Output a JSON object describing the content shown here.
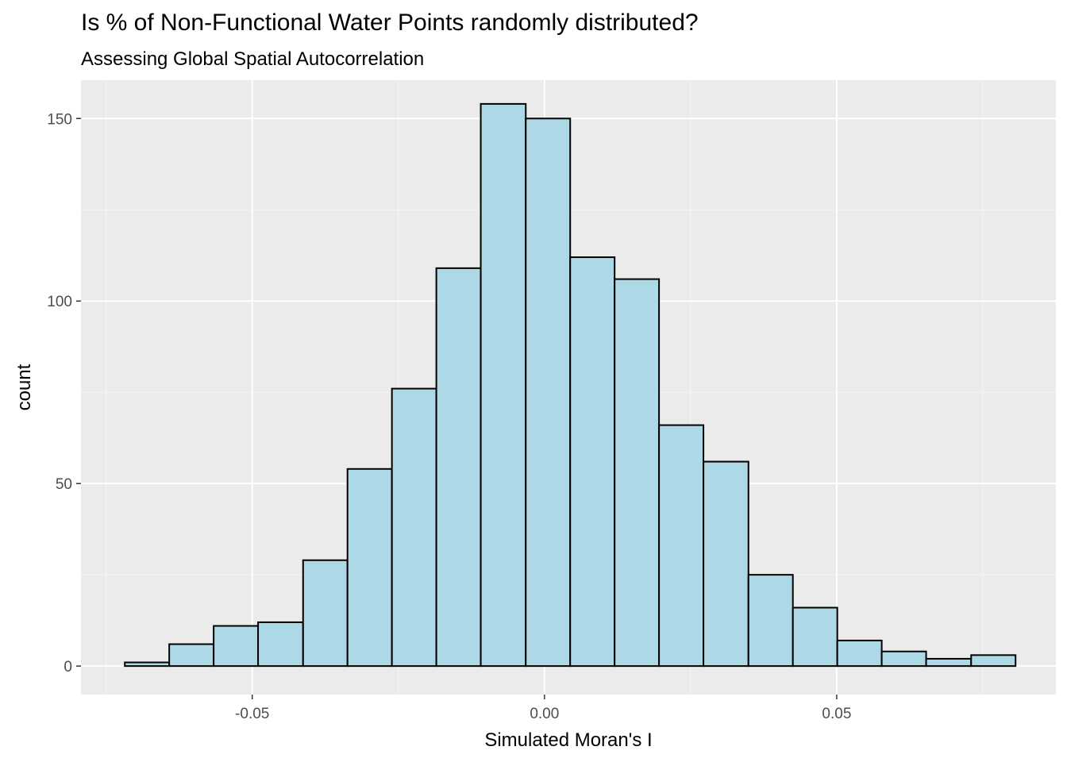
{
  "chart_data": {
    "type": "bar",
    "title": "Is % of Non-Functional Water Points randomly distributed?",
    "subtitle": "Assessing Global Spatial Autocorrelation",
    "xlabel": "Simulated Moran's I",
    "ylabel": "count",
    "xlim": [
      -0.0793,
      0.0875
    ],
    "ylim": [
      -7.8,
      160.5
    ],
    "x_ticks": [
      -0.05,
      0.0,
      0.05
    ],
    "x_tick_labels": [
      "-0.05",
      "0.00",
      "0.05"
    ],
    "y_ticks": [
      0,
      50,
      100,
      150
    ],
    "y_tick_labels": [
      "0",
      "50",
      "100",
      "150"
    ],
    "grid": true,
    "bin_width": 0.00762,
    "bins": [
      {
        "x0": -0.0718,
        "x1": -0.0642,
        "count": 1
      },
      {
        "x0": -0.0642,
        "x1": -0.0566,
        "count": 6
      },
      {
        "x0": -0.0566,
        "x1": -0.049,
        "count": 11
      },
      {
        "x0": -0.049,
        "x1": -0.0413,
        "count": 12
      },
      {
        "x0": -0.0413,
        "x1": -0.0337,
        "count": 29
      },
      {
        "x0": -0.0337,
        "x1": -0.0261,
        "count": 54
      },
      {
        "x0": -0.0261,
        "x1": -0.0185,
        "count": 76
      },
      {
        "x0": -0.0185,
        "x1": -0.0109,
        "count": 109
      },
      {
        "x0": -0.0109,
        "x1": -0.0032,
        "count": 154
      },
      {
        "x0": -0.0032,
        "x1": 0.0044,
        "count": 150
      },
      {
        "x0": 0.0044,
        "x1": 0.012,
        "count": 112
      },
      {
        "x0": 0.012,
        "x1": 0.0196,
        "count": 106
      },
      {
        "x0": 0.0196,
        "x1": 0.0272,
        "count": 66
      },
      {
        "x0": 0.0272,
        "x1": 0.0349,
        "count": 56
      },
      {
        "x0": 0.0349,
        "x1": 0.0425,
        "count": 25
      },
      {
        "x0": 0.0425,
        "x1": 0.0501,
        "count": 16
      },
      {
        "x0": 0.0501,
        "x1": 0.0577,
        "count": 7
      },
      {
        "x0": 0.0577,
        "x1": 0.0653,
        "count": 4
      },
      {
        "x0": 0.0653,
        "x1": 0.073,
        "count": 2
      },
      {
        "x0": 0.073,
        "x1": 0.0806,
        "count": 3
      }
    ],
    "colors": {
      "bar_fill": "#add8e6",
      "bar_stroke": "#000000",
      "panel_background": "#ebebeb",
      "grid_major": "#ffffff",
      "grid_minor": "#f5f5f5"
    }
  }
}
